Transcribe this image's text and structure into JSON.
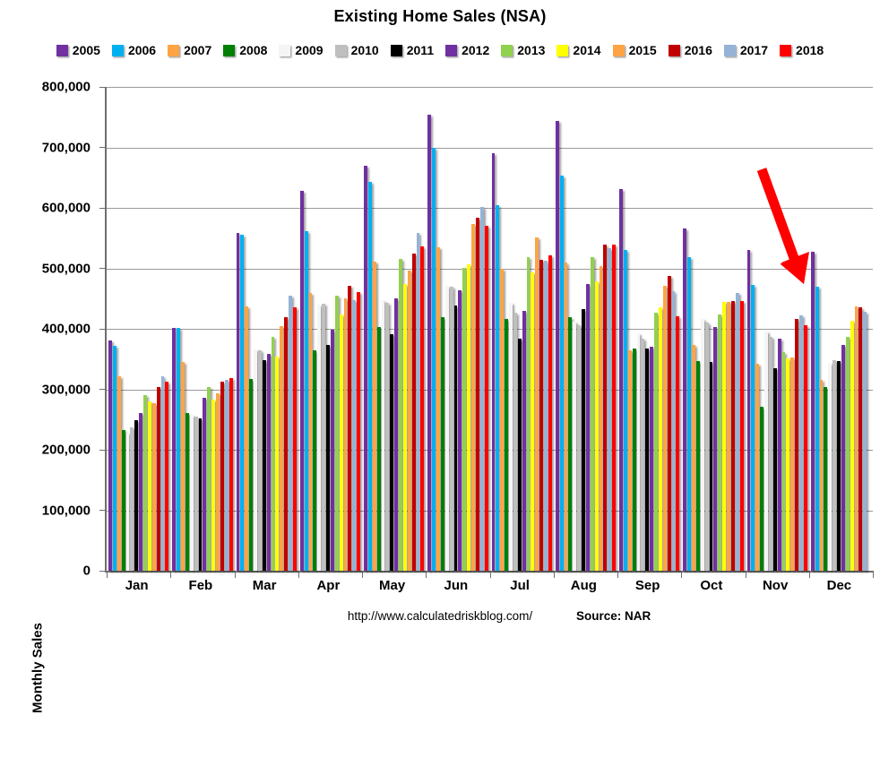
{
  "title": "Existing Home Sales (NSA)",
  "y_axis": {
    "label": "Monthly Sales",
    "ticks": [
      "800,000",
      "700,000",
      "600,000",
      "500,000",
      "400,000",
      "300,000",
      "200,000",
      "100,000",
      "0"
    ]
  },
  "footer": {
    "url": "http://www.calculatedriskblog.com/",
    "source": "Source: NAR"
  },
  "annotation": {
    "name": "decline-arrow",
    "color": "#FF0000",
    "points_at": "Nov 2018 bar"
  },
  "chart_data": {
    "type": "bar",
    "title": "Existing Home Sales (NSA)",
    "xlabel": "",
    "ylabel": "Monthly Sales",
    "ylim": [
      0,
      800000
    ],
    "grid": true,
    "legend_position": "top",
    "categories": [
      "Jan",
      "Feb",
      "Mar",
      "Apr",
      "May",
      "Jun",
      "Jul",
      "Aug",
      "Sep",
      "Oct",
      "Nov",
      "Dec"
    ],
    "series": [
      {
        "name": "2005",
        "color": "#7030A0",
        "values": [
          381000,
          401000,
          558000,
          628000,
          669000,
          754000,
          690000,
          744000,
          631000,
          566000,
          531000,
          528000
        ]
      },
      {
        "name": "2006",
        "color": "#00B0F0",
        "values": [
          372000,
          402000,
          555000,
          561000,
          643000,
          700000,
          605000,
          653000,
          530000,
          518000,
          473000,
          470000
        ]
      },
      {
        "name": "2007",
        "color": "#FFA445",
        "values": [
          321000,
          345000,
          437000,
          459000,
          511000,
          535000,
          500000,
          509000,
          365000,
          374000,
          342000,
          316000
        ]
      },
      {
        "name": "2008",
        "color": "#008000",
        "values": [
          233000,
          261000,
          317000,
          364000,
          403000,
          420000,
          416000,
          420000,
          368000,
          347000,
          271000,
          303000
        ]
      },
      {
        "name": "2009",
        "color": "#F5F5F5",
        "values": [
          228000,
          258000,
          366000,
          440000,
          448000,
          471000,
          443000,
          412000,
          393000,
          416000,
          395000,
          344000
        ]
      },
      {
        "name": "2010",
        "color": "#BFBFBF",
        "values": [
          237000,
          255000,
          364000,
          442000,
          443000,
          469000,
          427000,
          406000,
          383000,
          410000,
          387000,
          348000
        ]
      },
      {
        "name": "2011",
        "color": "#000000",
        "values": [
          249000,
          252000,
          348000,
          374000,
          391000,
          438000,
          384000,
          432000,
          367000,
          345000,
          335000,
          347000
        ]
      },
      {
        "name": "2012",
        "color": "#7030A0",
        "values": [
          261000,
          286000,
          359000,
          399000,
          450000,
          463000,
          429000,
          474000,
          371000,
          403000,
          384000,
          373000
        ]
      },
      {
        "name": "2013",
        "color": "#92D050",
        "values": [
          291000,
          303000,
          387000,
          455000,
          515000,
          501000,
          519000,
          518000,
          427000,
          423000,
          362000,
          386000
        ]
      },
      {
        "name": "2014",
        "color": "#FFFF00",
        "values": [
          280000,
          283000,
          354000,
          423000,
          474000,
          506000,
          493000,
          479000,
          436000,
          445000,
          351000,
          414000
        ]
      },
      {
        "name": "2015",
        "color": "#FFA445",
        "values": [
          277000,
          293000,
          404000,
          450000,
          497000,
          573000,
          551000,
          504000,
          471000,
          444000,
          352000,
          437000
        ]
      },
      {
        "name": "2016",
        "color": "#C00000",
        "values": [
          303000,
          313000,
          420000,
          471000,
          525000,
          583000,
          514000,
          540000,
          487000,
          446000,
          417000,
          436000
        ]
      },
      {
        "name": "2017",
        "color": "#95B3D7",
        "values": [
          321000,
          315000,
          455000,
          447000,
          558000,
          601000,
          513000,
          534000,
          462000,
          460000,
          422000,
          428000
        ]
      },
      {
        "name": "2018",
        "color": "#FF0000",
        "values": [
          312000,
          318000,
          435000,
          461000,
          536000,
          571000,
          521000,
          540000,
          421000,
          446000,
          406000,
          null
        ]
      }
    ]
  }
}
